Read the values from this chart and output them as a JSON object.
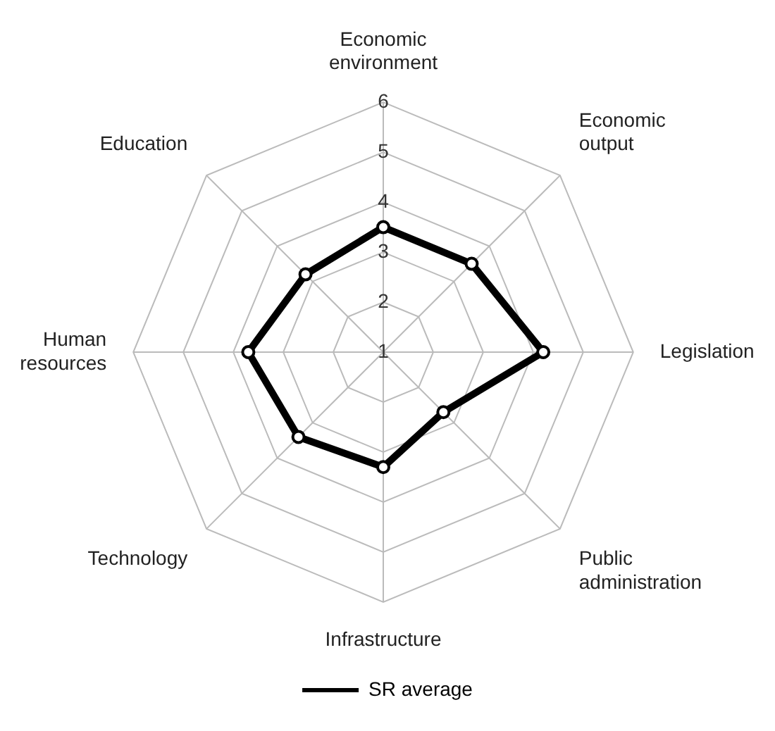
{
  "chart_data": {
    "type": "radar",
    "categories": [
      "Economic environment",
      "Economic output",
      "Legislation",
      "Public administration",
      "Infrastructure",
      "Technology",
      "Human resources",
      "Education"
    ],
    "series": [
      {
        "name": "SR average",
        "color": "#000000",
        "values": [
          3.5,
          3.5,
          4.2,
          2.7,
          3.3,
          3.4,
          3.7,
          3.2
        ]
      }
    ],
    "ylim": [
      1,
      6
    ],
    "yticks": [
      1,
      2,
      3,
      4,
      5,
      6
    ],
    "grid": true,
    "legend": "bottom",
    "marker": "circle",
    "line_style": "solid"
  }
}
